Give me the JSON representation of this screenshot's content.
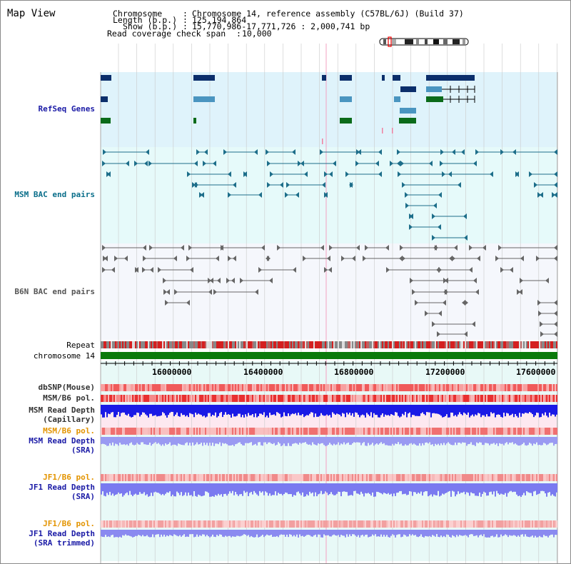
{
  "view": {
    "title": "Map View"
  },
  "header": {
    "chromosome_label": "Chromosome",
    "chromosome_value": "Chromosome 14, reference assembly (C57BL/6J) (Build 37)",
    "length_label": "Length (b.p.)",
    "length_value": "125,194,864",
    "show_label": "Show (b.p.)",
    "show_value": "15,770,986-17,771,726 : 2,000,741 bp",
    "coverage_label": "Read coverage check span",
    "coverage_value": "10,000"
  },
  "tracks": {
    "refseq": "RefSeq Genes",
    "msm_bac": "MSM BAC end pairs",
    "b6n_bac": "B6N BAC end pairs",
    "repeat": "Repeat",
    "chromosome": "chromosome 14",
    "dbsnp": "dbSNP(Mouse)",
    "msm_b6_pol_1": "MSM/B6 pol.",
    "msm_depth_cap_1": "MSM Read Depth",
    "msm_depth_cap_2": "(Capillary)",
    "msm_b6_pol_2": "MSM/B6 pol.",
    "msm_depth_sra_1": "MSM Read Depth",
    "msm_depth_sra_2": "(SRA)",
    "jf1_b6_pol_1": "JF1/B6 pol.",
    "jf1_depth_sra_1": "JF1 Read Depth",
    "jf1_depth_sra_2": "(SRA)",
    "jf1_b6_pol_2": "JF1/B6 pol.",
    "jf1_depth_trim_1": "JF1 Read Depth",
    "jf1_depth_trim_2": "(SRA trimmed)"
  },
  "ruler": {
    "ticks": [
      "16000000",
      "16400000",
      "16800000",
      "17200000",
      "17600000"
    ]
  },
  "colors": {
    "refseq_bg": "#dff3fb",
    "msm_bg": "#e6fafa",
    "b6n_bg": "#f5f7fc",
    "bottom_bg": "#e8f9f7",
    "chromosome_bar": "#0a7a0a",
    "depth_capillary": "#1a1ae6",
    "depth_sra": "#7a7af0",
    "pol": "#e83a3a",
    "highlight": "#f3a0c0"
  }
}
